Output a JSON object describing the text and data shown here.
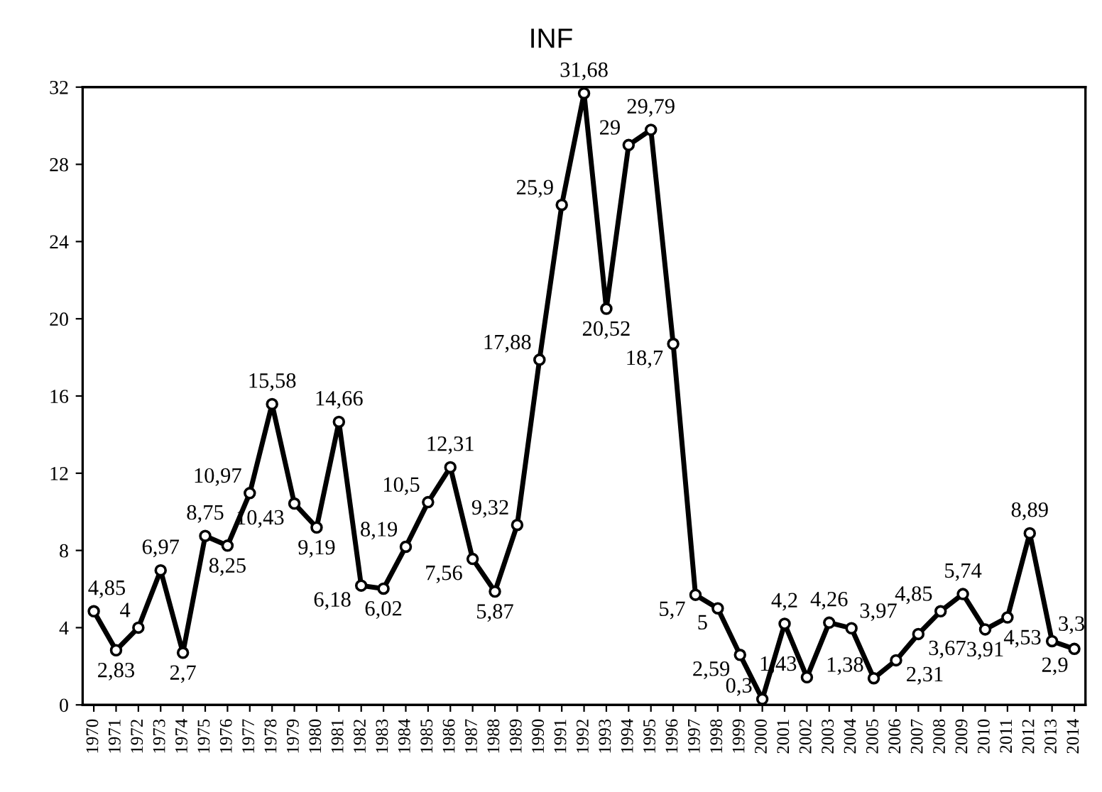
{
  "chart_data": {
    "type": "line",
    "title": "INF",
    "categories": [
      "1970",
      "1971",
      "1972",
      "1973",
      "1974",
      "1975",
      "1976",
      "1977",
      "1978",
      "1979",
      "1980",
      "1981",
      "1982",
      "1983",
      "1984",
      "1985",
      "1986",
      "1987",
      "1988",
      "1989",
      "1990",
      "1991",
      "1992",
      "1993",
      "1994",
      "1995",
      "1996",
      "1997",
      "1998",
      "1999",
      "2000",
      "2001",
      "2002",
      "2003",
      "2004",
      "2005",
      "2006",
      "2007",
      "2008",
      "2009",
      "2010",
      "2011",
      "2012",
      "2013",
      "2014"
    ],
    "series": [
      {
        "color": "#000000",
        "values": [
          4.85,
          2.83,
          4,
          6.97,
          2.7,
          8.75,
          8.25,
          10.97,
          15.58,
          10.43,
          9.19,
          14.66,
          6.18,
          6.02,
          8.19,
          10.5,
          12.31,
          7.56,
          5.87,
          9.32,
          17.88,
          25.9,
          31.68,
          20.52,
          29,
          29.79,
          18.7,
          5.7,
          5,
          2.59,
          0.3,
          4.2,
          1.43,
          4.26,
          3.97,
          1.38,
          2.31,
          3.67,
          4.85,
          5.74,
          3.91,
          4.53,
          8.89,
          3.3,
          2.9
        ],
        "value_labels": [
          "4,85",
          "2,83",
          "4",
          "6,97",
          "2,7",
          "8,75",
          "8,25",
          "10,97",
          "15,58",
          "10,43",
          "9,19",
          "14,66",
          "6,18",
          "6,02",
          "8,19",
          "10,5",
          "12,31",
          "7,56",
          "5,87",
          "9,32",
          "17,88",
          "25,9",
          "31,68",
          "20,52",
          "29",
          "29,79",
          "18,7",
          "5,7",
          "5",
          "2,59",
          "0,3",
          "4,2",
          "1,43",
          "4,26",
          "3,97",
          "1,38",
          "2,31",
          "3,67",
          "4,85",
          "5,74",
          "3,91",
          "4,53",
          "8,89",
          "3,3",
          "2,9"
        ]
      }
    ],
    "ylim": [
      0,
      32
    ],
    "yticks": [
      0,
      4,
      8,
      12,
      16,
      20,
      24,
      28,
      32
    ],
    "grid": false,
    "legend": false,
    "marker": "circle",
    "line_style": "solid"
  }
}
